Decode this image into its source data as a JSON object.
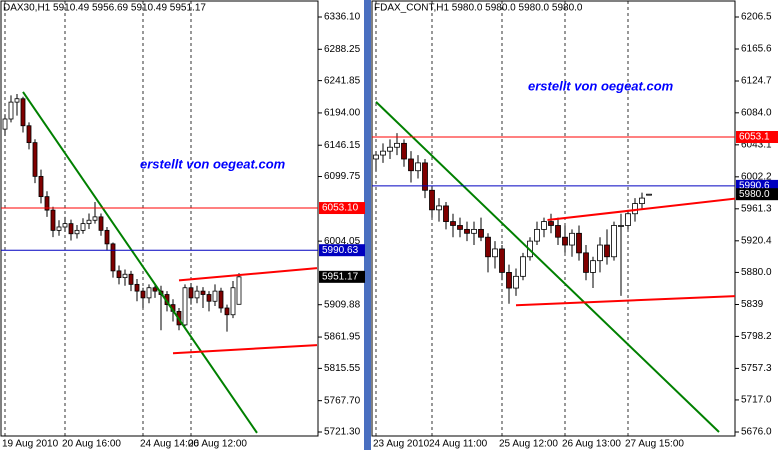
{
  "chart_data": [
    {
      "type": "candlestick",
      "title": "DAX30,H1  5910.49 5956.69 5910.49 5951.17",
      "annotation": "erstellt von oegeat.com",
      "categories": [
        "19 Aug 2010",
        null,
        null,
        null,
        null,
        null,
        null,
        null,
        null,
        null,
        "20 Aug 16:00",
        null,
        null,
        null,
        null,
        null,
        null,
        null,
        null,
        null,
        null,
        null,
        null,
        "24 Aug 14:00",
        null,
        null,
        null,
        null,
        null,
        null,
        null,
        "26 Aug 12:00",
        null,
        null,
        null,
        null,
        null,
        null,
        null,
        null
      ],
      "open": [
        6170,
        6185,
        6210,
        6215,
        6175,
        6150,
        6100,
        6070,
        6050,
        6020,
        6025,
        6030,
        6015,
        6020,
        6030,
        6035,
        6040,
        6020,
        6000,
        5960,
        5950,
        5955,
        5940,
        5930,
        5920,
        5935,
        5930,
        5925,
        5910,
        5900,
        5880,
        5935,
        5920,
        5930,
        5925,
        5915,
        5930,
        5905,
        5895,
        5910.49
      ],
      "high": [
        6192,
        6220,
        6222,
        6218,
        6180,
        6155,
        6110,
        6078,
        6055,
        6035,
        6040,
        6036,
        6028,
        6038,
        6045,
        6062,
        6045,
        6025,
        6002,
        5968,
        5962,
        5960,
        5948,
        5935,
        5940,
        5942,
        5938,
        5930,
        5918,
        5905,
        5940,
        5942,
        5938,
        5936,
        5930,
        5940,
        5935,
        5910,
        5945,
        5956.69
      ],
      "low": [
        6160,
        6180,
        6190,
        6165,
        6140,
        6090,
        6060,
        6040,
        6010,
        6012,
        6018,
        6005,
        6008,
        6015,
        6022,
        6030,
        6012,
        5990,
        5950,
        5940,
        5938,
        5930,
        5915,
        5905,
        5912,
        5920,
        5872,
        5900,
        5885,
        5872,
        5878,
        5910,
        5912,
        5905,
        5900,
        5908,
        5898,
        5870,
        5890,
        5910.49
      ],
      "close": [
        6185,
        6210,
        6215,
        6175,
        6150,
        6100,
        6070,
        6050,
        6020,
        6025,
        6030,
        6015,
        6020,
        6030,
        6035,
        6040,
        6020,
        6000,
        5960,
        5950,
        5955,
        5940,
        5930,
        5920,
        5935,
        5930,
        5925,
        5910,
        5900,
        5880,
        5935,
        5920,
        5930,
        5925,
        5915,
        5930,
        5905,
        5895,
        5935,
        5951.17
      ],
      "up_color": "#ffffff",
      "down_color": "#800000",
      "ylim": [
        5721.3,
        6336.1
      ],
      "yticks": [
        {
          "value": 5721.3,
          "label": "5721.30"
        },
        {
          "value": 5767.7,
          "label": "5767.70"
        },
        5815.55,
        5861.95,
        5909.88,
        {
          "value": 6004.05,
          "label": "6004.05"
        },
        6099.75,
        6146.15,
        {
          "value": 6194,
          "label": "6194.00"
        },
        6241.85,
        6288.25,
        {
          "value": 6336.1,
          "label": "6336.10"
        }
      ],
      "grid": true,
      "levels": [
        {
          "price": {
            "value": 6053.1,
            "label": "6053.10"
          },
          "color": "#ff0000"
        },
        {
          "price": 5990.63,
          "color": "#0000c0"
        }
      ],
      "last_price": 5951.17,
      "trendlines": [
        {
          "color": "#008000",
          "start": [
            3,
            6225
          ],
          "end": [
            42,
            5720
          ]
        },
        {
          "color": "#ff0000",
          "start": [
            29,
            5946
          ],
          "end": [
            52,
            5964
          ]
        },
        {
          "color": "#ff0000",
          "start": [
            28,
            5838
          ],
          "end": [
            52,
            5850
          ]
        }
      ]
    },
    {
      "type": "candlestick",
      "title": "FDAX_CONT,H1  5980.0 5980.0 5980.0 5980.0",
      "annotation": "erstellt von oegeat.com",
      "categories": [
        "23 Aug 2010",
        null,
        null,
        null,
        null,
        null,
        null,
        null,
        "24 Aug 11:00",
        null,
        null,
        null,
        null,
        null,
        null,
        null,
        null,
        null,
        "25 Aug 12:00",
        null,
        null,
        null,
        null,
        null,
        null,
        null,
        null,
        "26 Aug 13:00",
        null,
        null,
        null,
        null,
        null,
        null,
        null,
        null,
        "27 Aug 15:00",
        null,
        null,
        null
      ],
      "open": [
        6025,
        6030,
        6035,
        6040,
        6045,
        6025,
        6010,
        6020,
        5985,
        5960,
        5965,
        5945,
        5940,
        5935,
        5930,
        5935,
        5925,
        5900,
        5910,
        5880,
        5860,
        5875,
        5900,
        5920,
        5935,
        5945,
        5940,
        5925,
        5915,
        5930,
        5905,
        5880,
        5895,
        5915,
        5900,
        5940,
        5940,
        5955,
        5968,
        5980.0
      ],
      "high": [
        6035,
        6045,
        6050,
        6058,
        6050,
        6035,
        6030,
        6025,
        5990,
        5975,
        5970,
        5955,
        5950,
        5945,
        5945,
        5950,
        5930,
        5920,
        5915,
        5890,
        5885,
        5905,
        5925,
        5945,
        5950,
        5955,
        5950,
        5940,
        5935,
        5940,
        5915,
        5900,
        5925,
        5935,
        5945,
        5955,
        5960,
        5975,
        5982,
        5980.0
      ],
      "low": [
        6010,
        6020,
        6025,
        6030,
        6015,
        5995,
        6000,
        5975,
        5950,
        5945,
        5935,
        5925,
        5925,
        5920,
        5915,
        5920,
        5880,
        5885,
        5870,
        5840,
        5850,
        5870,
        5895,
        5915,
        5925,
        5930,
        5915,
        5905,
        5900,
        5895,
        5870,
        5860,
        5880,
        5890,
        5895,
        5850,
        5935,
        5945,
        5960,
        5980.0
      ],
      "close": [
        6030,
        6035,
        6040,
        6045,
        6025,
        6010,
        6020,
        5985,
        5960,
        5965,
        5945,
        5940,
        5935,
        5930,
        5935,
        5925,
        5900,
        5910,
        5880,
        5860,
        5875,
        5900,
        5920,
        5935,
        5945,
        5940,
        5925,
        5915,
        5930,
        5905,
        5880,
        5895,
        5915,
        5900,
        5940,
        5940,
        5955,
        5968,
        5975,
        5980.0
      ],
      "up_color": "#ffffff",
      "down_color": "#800000",
      "ylim": [
        5676,
        6206.5
      ],
      "yticks": [
        {
          "value": 5676,
          "label": "5676.0"
        },
        {
          "value": 5717,
          "label": "5717.0"
        },
        5757.3,
        5798.2,
        5839,
        {
          "value": 5880,
          "label": "5880.0"
        },
        5920.4,
        5961.3,
        6002.2,
        6043.1,
        {
          "value": 6084,
          "label": "6084.0"
        },
        6124.7,
        6165.6,
        6206.5
      ],
      "grid": true,
      "levels": [
        {
          "price": 6053.1,
          "color": "#ff0000"
        },
        {
          "price": 5990.6,
          "color": "#0000c0"
        }
      ],
      "last_price": {
        "value": 5980,
        "label": "5980.0"
      },
      "trendlines": [
        {
          "color": "#008000",
          "start": [
            0,
            6098
          ],
          "end": [
            49,
            5676
          ]
        },
        {
          "color": "#ff0000",
          "start": [
            24.5,
            5947
          ],
          "end": [
            52,
            5975
          ]
        },
        {
          "color": "#ff0000",
          "start": [
            20,
            5838
          ],
          "end": [
            52,
            5850
          ]
        }
      ]
    }
  ]
}
